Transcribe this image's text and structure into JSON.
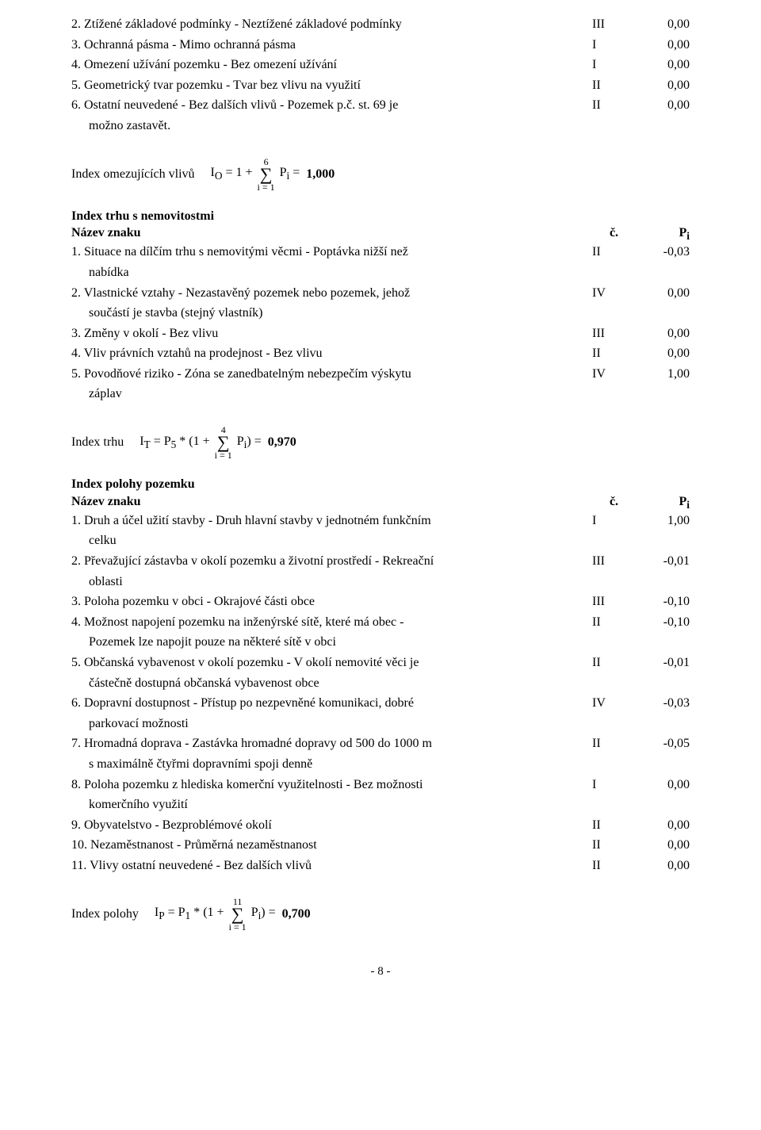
{
  "top_items": [
    {
      "text": "2. Ztížené základové podmínky - Neztížené základové podmínky",
      "c": "III",
      "p": "0,00",
      "indent": false
    },
    {
      "text": "3. Ochranná pásma - Mimo ochranná pásma",
      "c": "I",
      "p": "0,00",
      "indent": false
    },
    {
      "text": "4. Omezení užívání pozemku - Bez omezení užívání",
      "c": "I",
      "p": "0,00",
      "indent": false
    },
    {
      "text": "5. Geometrický tvar pozemku - Tvar bez vlivu na využití",
      "c": "II",
      "p": "0,00",
      "indent": false
    },
    {
      "text": "6. Ostatní neuvedené - Bez dalších vlivů - Pozemek p.č. st. 69 je",
      "c": "II",
      "p": "0,00",
      "indent": false
    },
    {
      "text": "možno zastavět.",
      "c": "",
      "p": "",
      "indent": true
    }
  ],
  "formula_omez": {
    "label": "Index omezujících vlivů",
    "lead_html": "I<sub>O</sub> = 1 +",
    "sum_top": "6",
    "sum_bot": "i = 1",
    "tail_html": "P<sub>i</sub> =",
    "result": "1,000"
  },
  "section_trh_title": "Index trhu s nemovitostmi",
  "col_name": "Název znaku",
  "col_c": "č.",
  "col_p_html": "P<sub>i</sub>",
  "trh_items": [
    {
      "text": "1. Situace na dílčím trhu s nemovitými věcmi - Poptávka nižší než",
      "c": "II",
      "p": "-0,03",
      "indent": false
    },
    {
      "text": "nabídka",
      "c": "",
      "p": "",
      "indent": true
    },
    {
      "text": "2. Vlastnické vztahy - Nezastavěný pozemek nebo pozemek, jehož",
      "c": "IV",
      "p": "0,00",
      "indent": false
    },
    {
      "text": "součástí je stavba (stejný vlastník)",
      "c": "",
      "p": "",
      "indent": true
    },
    {
      "text": "3. Změny v okolí - Bez vlivu",
      "c": "III",
      "p": "0,00",
      "indent": false
    },
    {
      "text": "4. Vliv právních vztahů na prodejnost - Bez vlivu",
      "c": "II",
      "p": "0,00",
      "indent": false
    },
    {
      "text": "5. Povodňové riziko - Zóna se zanedbatelným nebezpečím výskytu",
      "c": "IV",
      "p": "1,00",
      "indent": false
    },
    {
      "text": "záplav",
      "c": "",
      "p": "",
      "indent": true
    }
  ],
  "formula_trh": {
    "label": "Index trhu",
    "lead_html": "I<sub>T</sub> = P<sub>5</sub> * (1 +",
    "sum_top": "4",
    "sum_bot": "i = 1",
    "tail_html": "P<sub>i</sub>) =",
    "result": "0,970"
  },
  "section_poloha_title": "Index polohy pozemku",
  "poloha_items": [
    {
      "text": "1. Druh a účel užití stavby - Druh hlavní stavby v jednotném funkčním",
      "c": "I",
      "p": "1,00",
      "indent": false
    },
    {
      "text": "celku",
      "c": "",
      "p": "",
      "indent": true
    },
    {
      "text": "2. Převažující zástavba v okolí pozemku a životní prostředí - Rekreační",
      "c": "III",
      "p": "-0,01",
      "indent": false
    },
    {
      "text": "oblasti",
      "c": "",
      "p": "",
      "indent": true
    },
    {
      "text": "3. Poloha pozemku v obci - Okrajové části obce",
      "c": "III",
      "p": "-0,10",
      "indent": false
    },
    {
      "text": "4. Možnost napojení pozemku na inženýrské sítě, které má obec -",
      "c": "II",
      "p": "-0,10",
      "indent": false
    },
    {
      "text": "Pozemek lze napojit pouze na některé sítě v obci",
      "c": "",
      "p": "",
      "indent": true
    },
    {
      "text": "5. Občanská vybavenost v okolí pozemku - V okolí nemovité věci je",
      "c": "II",
      "p": "-0,01",
      "indent": false
    },
    {
      "text": "částečně dostupná občanská vybavenost obce",
      "c": "",
      "p": "",
      "indent": true
    },
    {
      "text": "6. Dopravní dostupnost - Přístup po nezpevněné komunikaci, dobré",
      "c": "IV",
      "p": "-0,03",
      "indent": false
    },
    {
      "text": "parkovací možnosti",
      "c": "",
      "p": "",
      "indent": true
    },
    {
      "text": "7. Hromadná doprava - Zastávka hromadné dopravy od 500 do 1000 m",
      "c": "II",
      "p": "-0,05",
      "indent": false
    },
    {
      "text": "s maximálně čtyřmi dopravními spoji denně",
      "c": "",
      "p": "",
      "indent": true
    },
    {
      "text": "8. Poloha pozemku z hlediska komerční využitelnosti - Bez možnosti",
      "c": "I",
      "p": "0,00",
      "indent": false
    },
    {
      "text": "komerčního využití",
      "c": "",
      "p": "",
      "indent": true
    },
    {
      "text": "9. Obyvatelstvo - Bezproblémové okolí",
      "c": "II",
      "p": "0,00",
      "indent": false
    },
    {
      "text": "10. Nezaměstnanost - Průměrná nezaměstnanost",
      "c": "II",
      "p": "0,00",
      "indent": false
    },
    {
      "text": "11. Vlivy ostatní neuvedené - Bez dalších vlivů",
      "c": "II",
      "p": "0,00",
      "indent": false
    }
  ],
  "formula_poloha": {
    "label": "Index polohy",
    "lead_html": "I<sub>P</sub> = P<sub>1</sub> * (1 +",
    "sum_top": "11",
    "sum_bot": "i = 1",
    "tail_html": "P<sub>i</sub>) =",
    "result": "0,700"
  },
  "page_foot": "- 8 -"
}
